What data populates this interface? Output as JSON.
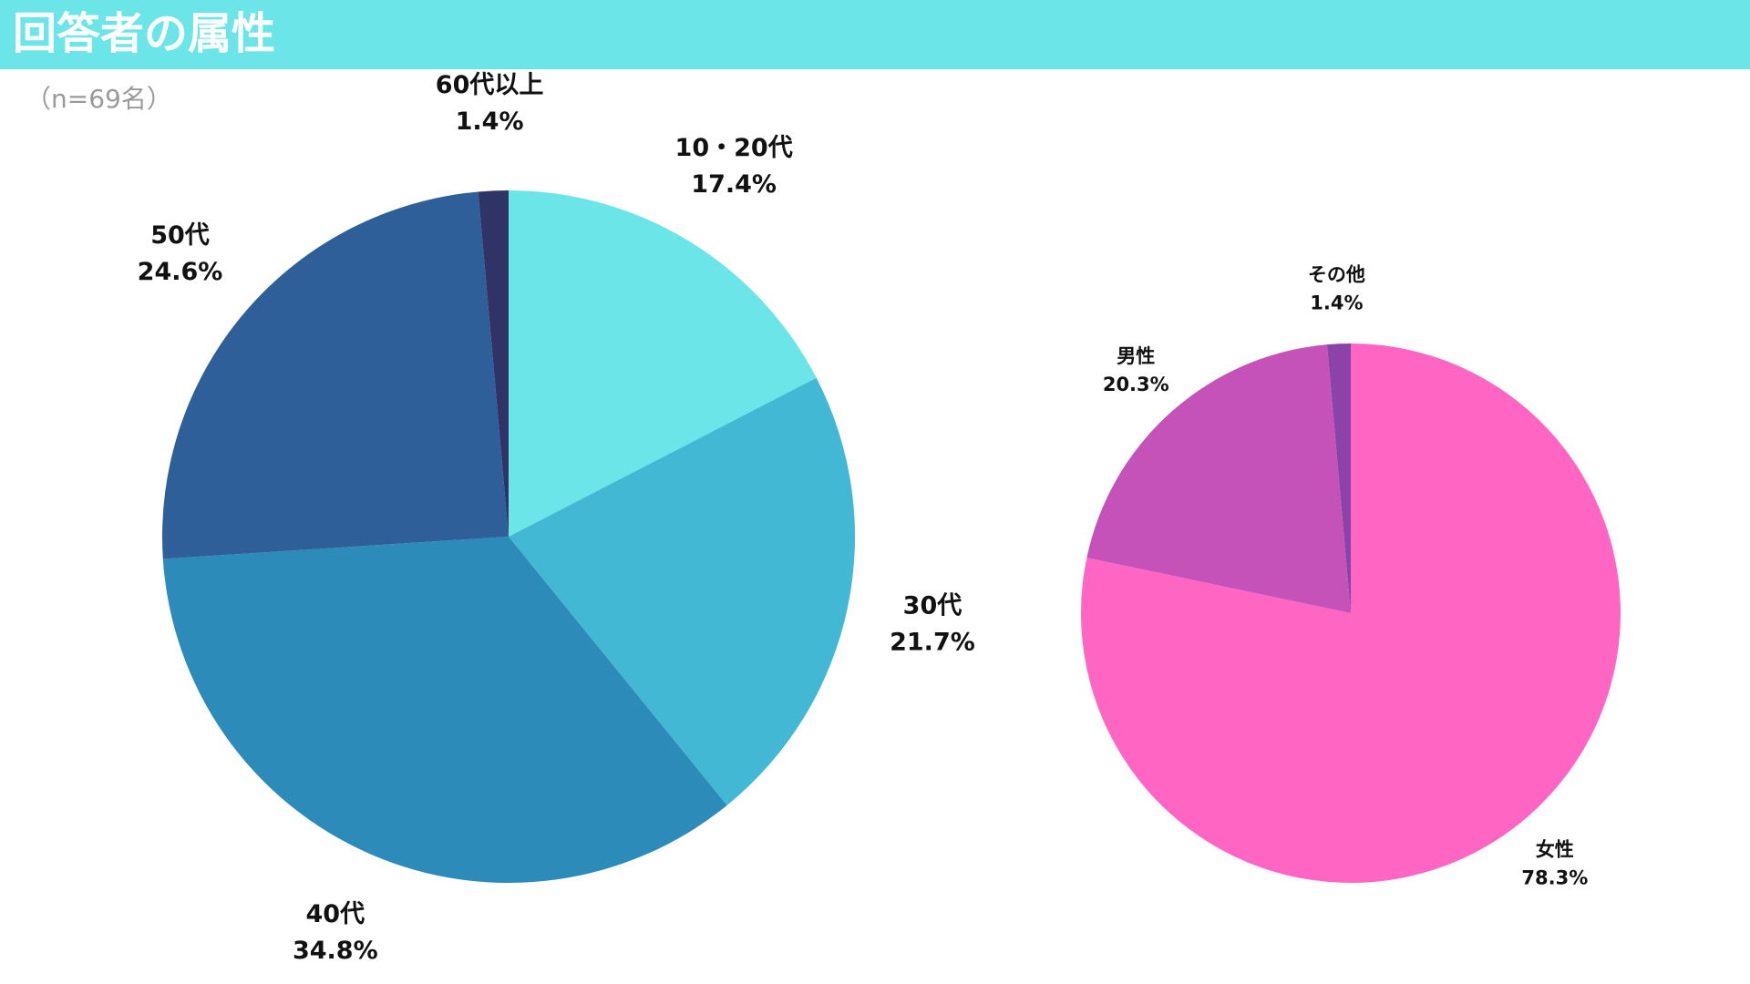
{
  "title": "回答者の属性",
  "subtitle": "（n=69名）",
  "chart_data": [
    {
      "type": "pie",
      "categories": [
        "10・20代",
        "30代",
        "40代",
        "50代",
        "60代以上"
      ],
      "values": [
        17.4,
        21.7,
        34.8,
        24.6,
        1.4
      ],
      "value_labels": [
        "17.4%",
        "21.7%",
        "34.8%",
        "24.6%",
        "1.4%"
      ],
      "colors": [
        "#6ce5e8",
        "#42b8d5",
        "#2d8bba",
        "#2f5f98",
        "#2f3366"
      ]
    },
    {
      "type": "pie",
      "categories": [
        "女性",
        "男性",
        "その他"
      ],
      "values": [
        78.3,
        20.3,
        1.4
      ],
      "value_labels": [
        "78.3%",
        "20.3%",
        "1.4%"
      ],
      "colors": [
        "#ff66c4",
        "#c452b8",
        "#8c43a8"
      ]
    }
  ]
}
